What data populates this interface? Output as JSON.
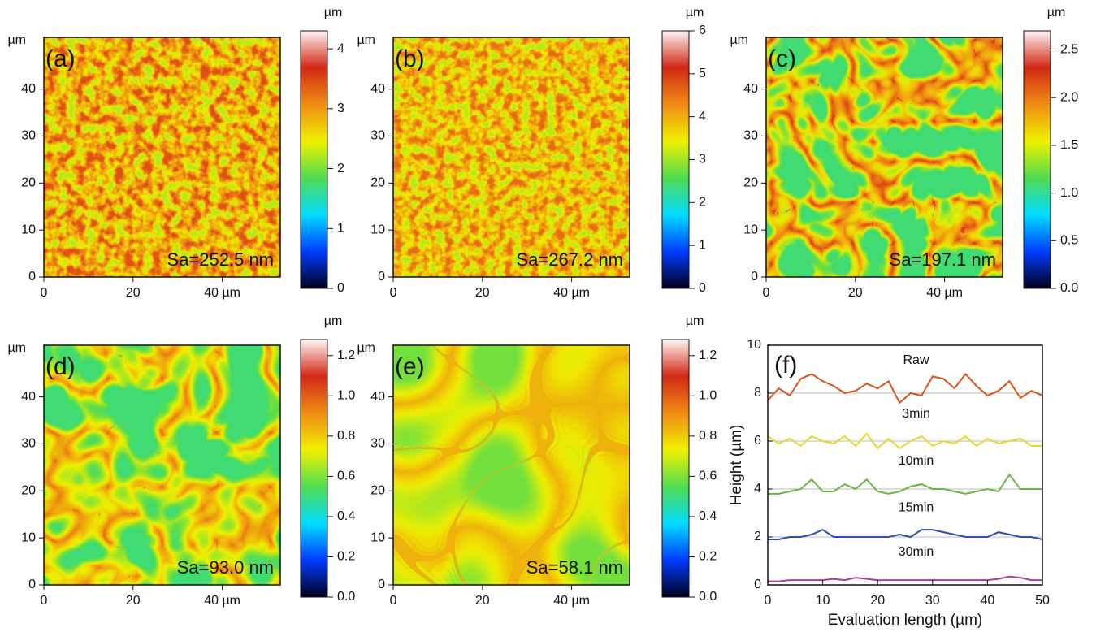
{
  "chart_data": [
    {
      "type": "heatmap",
      "label": "(a)",
      "annotation": "Sa=252.5 nm",
      "unit": "µm",
      "colorbar_unit": "µm",
      "xlim": [
        0,
        53
      ],
      "ylim": [
        0,
        51
      ],
      "xticks": [
        0,
        20,
        {
          "value": 40,
          "label": "40 µm"
        }
      ],
      "yticks": [
        0,
        10,
        20,
        30,
        40
      ],
      "clim": [
        0,
        4.3
      ],
      "cticks": [
        0,
        1,
        2,
        3,
        4
      ],
      "colormap": [
        "#00001e",
        "#003cff",
        "#00dcff",
        "#50dc50",
        "#f0f000",
        "#f08c14",
        "#d22814",
        "#fff5f5"
      ]
    },
    {
      "type": "heatmap",
      "label": "(b)",
      "annotation": "Sa=267.2 nm",
      "unit": "µm",
      "colorbar_unit": "µm",
      "xlim": [
        0,
        53
      ],
      "ylim": [
        0,
        51
      ],
      "xticks": [
        0,
        20,
        {
          "value": 40,
          "label": "40 µm"
        }
      ],
      "yticks": [
        0,
        10,
        20,
        30,
        40
      ],
      "clim": [
        0,
        6
      ],
      "cticks": [
        0,
        1,
        2,
        3,
        4,
        5,
        6
      ],
      "colormap": [
        "#00001e",
        "#003cff",
        "#00dcff",
        "#50dc50",
        "#f0f000",
        "#f08c14",
        "#d22814",
        "#fff5f5"
      ]
    },
    {
      "type": "heatmap",
      "label": "(c)",
      "annotation": "Sa=197.1 nm",
      "unit": "µm",
      "colorbar_unit": "µm",
      "xlim": [
        0,
        53
      ],
      "ylim": [
        0,
        51
      ],
      "xticks": [
        0,
        20,
        {
          "value": 40,
          "label": "40 µm"
        }
      ],
      "yticks": [
        0,
        10,
        20,
        30,
        40
      ],
      "clim": [
        0,
        2.7
      ],
      "cticks": [
        {
          "value": 0,
          "label": "0.0"
        },
        0.5,
        {
          "value": 1,
          "label": "1.0"
        },
        1.5,
        {
          "value": 2,
          "label": "2.0"
        },
        2.5
      ],
      "colormap": [
        "#00001e",
        "#003cff",
        "#00dcff",
        "#50dc50",
        "#f0f000",
        "#f08c14",
        "#d22814",
        "#fff5f5"
      ]
    },
    {
      "type": "heatmap",
      "label": "(d)",
      "annotation": "Sa=93.0 nm",
      "unit": "µm",
      "colorbar_unit": "µm",
      "xlim": [
        0,
        53
      ],
      "ylim": [
        0,
        51
      ],
      "xticks": [
        0,
        20,
        {
          "value": 40,
          "label": "40 µm"
        }
      ],
      "yticks": [
        0,
        10,
        20,
        30,
        40
      ],
      "clim": [
        0,
        1.28
      ],
      "cticks": [
        {
          "value": 0,
          "label": "0.0"
        },
        0.2,
        0.4,
        0.6,
        0.8,
        {
          "value": 1,
          "label": "1.0"
        },
        1.2
      ],
      "colormap": [
        "#00001e",
        "#003cff",
        "#00dcff",
        "#50dc50",
        "#f0f000",
        "#f08c14",
        "#d22814",
        "#fff5f5"
      ]
    },
    {
      "type": "heatmap",
      "label": "(e)",
      "annotation": "Sa=58.1 nm",
      "unit": "µm",
      "colorbar_unit": "µm",
      "xlim": [
        0,
        53
      ],
      "ylim": [
        0,
        51
      ],
      "xticks": [
        0,
        20,
        {
          "value": 40,
          "label": "40 µm"
        }
      ],
      "yticks": [
        0,
        10,
        20,
        30,
        40
      ],
      "clim": [
        0,
        1.28
      ],
      "cticks": [
        {
          "value": 0,
          "label": "0.0"
        },
        0.2,
        0.4,
        0.6,
        0.8,
        {
          "value": 1,
          "label": "1.0"
        },
        1.2
      ],
      "colormap": [
        "#00001e",
        "#003cff",
        "#00dcff",
        "#50dc50",
        "#f0f000",
        "#f08c14",
        "#d22814",
        "#fff5f5"
      ]
    },
    {
      "type": "line",
      "label": "(f)",
      "x_label": "Evaluation length (µm)",
      "y_label": "Height (µm)",
      "xlim": [
        0,
        50
      ],
      "ylim": [
        0,
        10
      ],
      "xticks": [
        0,
        10,
        20,
        30,
        40,
        50
      ],
      "yticks": [
        0,
        2,
        4,
        6,
        8,
        10
      ],
      "reference_lines": [
        8,
        6,
        4,
        2
      ],
      "reference_color": "#bbbbbb",
      "x": [
        0,
        2,
        4,
        6,
        8,
        10,
        12,
        14,
        16,
        18,
        20,
        22,
        24,
        26,
        28,
        30,
        32,
        34,
        36,
        38,
        40,
        42,
        44,
        46,
        48,
        50
      ],
      "series": [
        {
          "name": "Raw",
          "color": "#d9541a",
          "values": [
            7.7,
            8.2,
            7.9,
            8.6,
            8.8,
            8.5,
            8.3,
            8.0,
            8.1,
            8.4,
            8.2,
            8.5,
            7.6,
            8.0,
            7.9,
            8.7,
            8.6,
            8.2,
            8.8,
            8.3,
            7.9,
            8.1,
            8.5,
            7.8,
            8.1,
            7.9
          ]
        },
        {
          "name": "3min",
          "color": "#e8d82a",
          "values": [
            6.2,
            5.9,
            6.1,
            5.8,
            6.2,
            6.0,
            5.9,
            6.2,
            5.8,
            6.3,
            5.7,
            6.1,
            5.7,
            6.0,
            6.2,
            5.8,
            6.0,
            5.9,
            6.2,
            5.8,
            6.1,
            5.9,
            6.0,
            6.1,
            5.8,
            5.8
          ]
        },
        {
          "name": "10min",
          "color": "#6bb543",
          "values": [
            3.8,
            3.8,
            3.9,
            4.0,
            4.4,
            3.9,
            3.9,
            4.2,
            4.0,
            4.4,
            3.9,
            3.8,
            3.9,
            4.1,
            4.2,
            4.0,
            4.0,
            3.9,
            3.8,
            3.9,
            4.0,
            3.9,
            4.6,
            4.0,
            4.0,
            4.0
          ]
        },
        {
          "name": "15min",
          "color": "#2a4fae",
          "values": [
            1.9,
            1.9,
            2.0,
            2.0,
            2.1,
            2.3,
            2.0,
            2.0,
            2.0,
            2.0,
            2.0,
            2.0,
            2.1,
            2.0,
            2.3,
            2.3,
            2.2,
            2.1,
            2.0,
            2.0,
            2.0,
            2.2,
            2.1,
            2.0,
            2.0,
            1.9
          ]
        },
        {
          "name": "30min",
          "color": "#b03a9a",
          "values": [
            0.15,
            0.15,
            0.2,
            0.2,
            0.2,
            0.2,
            0.25,
            0.2,
            0.3,
            0.25,
            0.2,
            0.2,
            0.2,
            0.2,
            0.2,
            0.2,
            0.2,
            0.2,
            0.2,
            0.2,
            0.2,
            0.25,
            0.35,
            0.3,
            0.2,
            0.2
          ]
        }
      ]
    }
  ]
}
